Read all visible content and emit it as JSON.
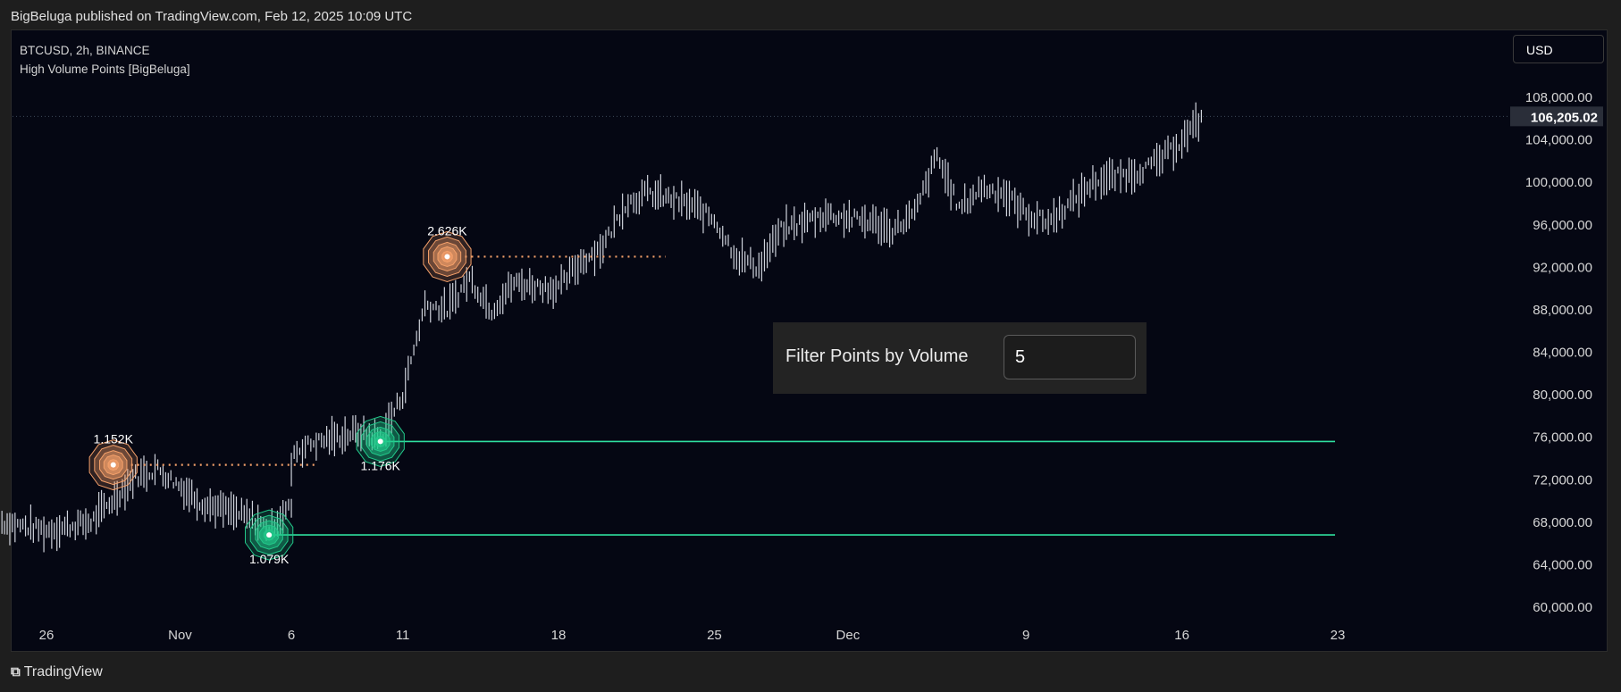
{
  "header": {
    "published": "BigBeluga published on TradingView.com, Feb 12, 2025 10:09 UTC"
  },
  "legend": {
    "symbol": "BTCUSD, 2h, BINANCE",
    "indicator": "High Volume Points [BigBeluga]"
  },
  "currency": "USD",
  "filter": {
    "label": "Filter Points by Volume",
    "value": "5"
  },
  "footer": {
    "brand": "TradingView"
  },
  "colors": {
    "background": "#050713",
    "candle": "#cfd3dc",
    "bull_point": "#22c98a",
    "bear_point": "#f4a06a",
    "level_line": "#2fe0a0",
    "last_price_bg": "#2a2e39"
  },
  "chart_data": {
    "type": "line",
    "title": "BTCUSD, 2h, BINANCE",
    "x_ticks": [
      "26",
      "Nov",
      "6",
      "11",
      "18",
      "25",
      "Dec",
      "9",
      "16",
      "23"
    ],
    "y_ticks": [
      "108,000.00",
      "104,000.00",
      "100,000.00",
      "96,000.00",
      "92,000.00",
      "88,000.00",
      "84,000.00",
      "80,000.00",
      "76,000.00",
      "72,000.00",
      "68,000.00",
      "64,000.00",
      "60,000.00"
    ],
    "ylim": [
      58000,
      110500
    ],
    "last_price": {
      "value": 106205.02,
      "label": "106,205.02"
    },
    "series": [
      {
        "values": [
          [
            "Oct 24",
            68000
          ],
          [
            "Oct 26",
            67200
          ],
          [
            "Oct 28",
            68000
          ],
          [
            "Oct 30",
            72300
          ],
          [
            "Oct 31",
            73000
          ],
          [
            "Nov 2",
            69800
          ],
          [
            "Nov 4",
            68500
          ],
          [
            "Nov 5",
            67500
          ],
          [
            "Nov 6",
            69500
          ],
          [
            "Nov 6",
            74500
          ],
          [
            "Nov 7",
            75500
          ],
          [
            "Nov 9",
            76500
          ],
          [
            "Nov 10",
            75800
          ],
          [
            "Nov 11",
            80000
          ],
          [
            "Nov 12",
            88500
          ],
          [
            "Nov 13",
            88000
          ],
          [
            "Nov 14",
            91000
          ],
          [
            "Nov 15",
            88000
          ],
          [
            "Nov 16",
            90500
          ],
          [
            "Nov 18",
            90000
          ],
          [
            "Nov 19",
            92500
          ],
          [
            "Nov 20",
            94000
          ],
          [
            "Nov 21",
            98000
          ],
          [
            "Nov 22",
            99000
          ],
          [
            "Nov 24",
            97800
          ],
          [
            "Nov 25",
            96500
          ],
          [
            "Nov 26",
            93000
          ],
          [
            "Nov 27",
            92000
          ],
          [
            "Nov 28",
            95500
          ],
          [
            "Nov 30",
            97000
          ],
          [
            "Dec 2",
            96300
          ],
          [
            "Dec 3",
            95500
          ],
          [
            "Dec 4",
            97000
          ],
          [
            "Dec 5",
            102500
          ],
          [
            "Dec 6",
            97500
          ],
          [
            "Dec 7",
            99500
          ],
          [
            "Dec 8",
            99000
          ],
          [
            "Dec 9",
            97000
          ],
          [
            "Dec 10",
            96300
          ],
          [
            "Dec 11",
            98000
          ],
          [
            "Dec 12",
            100000
          ],
          [
            "Dec 13",
            100500
          ],
          [
            "Dec 14",
            101000
          ],
          [
            "Dec 15",
            102000
          ],
          [
            "Dec 16",
            104000
          ],
          [
            "Dec 17",
            106205
          ]
        ]
      }
    ],
    "volume_points": [
      {
        "label": "1.152K",
        "type": "bear",
        "date": "Oct 29",
        "price": 73400
      },
      {
        "label": "1.079K",
        "type": "bull",
        "date": "Nov 5",
        "price": 66800
      },
      {
        "label": "1.176K",
        "type": "bull",
        "date": "Nov 10",
        "price": 75600
      },
      {
        "label": "2.626K",
        "type": "bear",
        "date": "Nov 13",
        "price": 93000
      }
    ],
    "levels": [
      {
        "price": 75600,
        "style": "solid"
      },
      {
        "price": 66800,
        "style": "solid"
      },
      {
        "price": 73400,
        "style": "dotted"
      },
      {
        "price": 93000,
        "style": "dotted"
      }
    ],
    "grid": false
  }
}
